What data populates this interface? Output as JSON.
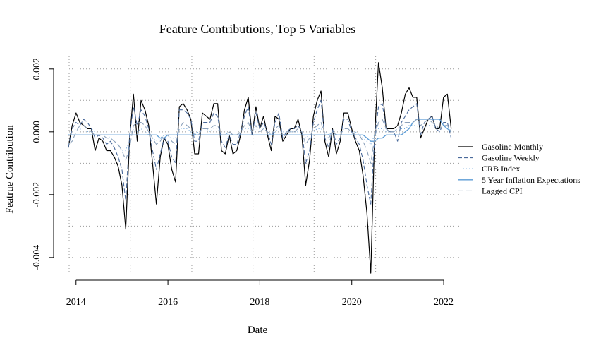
{
  "chart_data": {
    "type": "line",
    "title": "Feature Contributions, Top 5 Variables",
    "xlabel": "Date",
    "ylabel": "Featrue Contribution",
    "xlim": [
      2013.85,
      2022.03
    ],
    "ylim": [
      -0.0047,
      0.0024
    ],
    "x_ticks": [
      2014,
      2016,
      2018,
      2020,
      2022
    ],
    "x_tick_labels": [
      "2014",
      "2016",
      "2018",
      "2020",
      "2022"
    ],
    "y_ticks": [
      -0.004,
      -0.002,
      0.0,
      0.002
    ],
    "y_tick_labels": [
      "-0.004",
      "-0.002",
      "0.000",
      "0.002"
    ],
    "grid_x": [
      2013.85,
      2015.18,
      2016.52,
      2017.85,
      2019.18,
      2020.52
    ],
    "grid_y": [
      -0.004,
      -0.003,
      -0.002,
      -0.001,
      0.0,
      0.001,
      0.002
    ],
    "grid": true,
    "legend_position": "right",
    "x_start": 2013.8333,
    "x_step": 0.0833,
    "series": [
      {
        "name": "Gasoline Monthly",
        "color": "#000000",
        "dash": "",
        "width": 1.2,
        "values": [
          -0.0005,
          0.0002,
          0.0006,
          0.0003,
          0.0002,
          0.0001,
          0.0001,
          -0.0006,
          -0.0002,
          -0.0003,
          -0.0006,
          -0.0006,
          -0.0008,
          -0.0011,
          -0.0017,
          -0.0031,
          -0.0002,
          0.0012,
          -0.0003,
          0.001,
          0.0007,
          0.0002,
          -0.001,
          -0.0023,
          -0.0008,
          -0.0002,
          -0.0004,
          -0.0012,
          -0.0016,
          0.0008,
          0.0009,
          0.0007,
          0.0004,
          -0.0007,
          -0.0007,
          0.0006,
          0.0005,
          0.0004,
          0.0009,
          0.0009,
          -0.0006,
          -0.0007,
          -0.0001,
          -0.0007,
          -0.0006,
          -0.0001,
          0.0007,
          0.0011,
          -0.0001,
          0.0008,
          0.0001,
          0.0005,
          -0.0001,
          -0.0006,
          0.0005,
          0.0004,
          -0.0003,
          -0.0001,
          0.0001,
          0.0001,
          0.0004,
          -0.0001,
          -0.0017,
          -0.0009,
          0.0005,
          0.001,
          0.0013,
          -0.0003,
          -0.0008,
          0.0001,
          -0.0007,
          -0.0003,
          0.0006,
          0.0006,
          0.0001,
          -0.0003,
          -0.0006,
          -0.0014,
          -0.0026,
          -0.0045,
          -0.0002,
          0.0022,
          0.0014,
          0.0001,
          0.0001,
          0.0001,
          0.0002,
          0.0006,
          0.0012,
          0.0014,
          0.0011,
          0.0011,
          -0.0002,
          0.0001,
          0.0004,
          0.0005,
          0.0001,
          0.0001,
          0.0011,
          0.0012,
          0.0001
        ]
      },
      {
        "name": "Gasoline Weekly",
        "color": "#4a6a9b",
        "dash": "6,3",
        "width": 1.1,
        "values": [
          -0.0005,
          0.0001,
          0.0003,
          0.0002,
          0.0004,
          0.0003,
          0.0001,
          -0.0002,
          -0.0001,
          -0.0002,
          -0.0004,
          -0.0003,
          -0.0005,
          -0.0008,
          -0.0012,
          -0.0022,
          -0.0001,
          0.0008,
          0.0002,
          0.0007,
          0.0005,
          0.0001,
          -0.0006,
          -0.0012,
          -0.0007,
          -0.0002,
          -0.0003,
          -0.0008,
          -0.001,
          0.0007,
          0.0007,
          0.0006,
          0.0004,
          -0.0003,
          -0.0003,
          0.0003,
          0.0003,
          0.0003,
          0.0006,
          0.0005,
          -0.0003,
          -0.0005,
          -0.0001,
          -0.0004,
          -0.0004,
          0.0,
          0.0005,
          0.0008,
          -0.0001,
          0.0006,
          0.0001,
          0.0003,
          0.0,
          -0.0004,
          0.0003,
          0.0006,
          -0.0002,
          0.0,
          0.0001,
          0.0001,
          0.0002,
          0.0,
          -0.001,
          -0.0006,
          0.0003,
          0.0007,
          0.001,
          -0.0002,
          -0.0005,
          0.0001,
          -0.0004,
          -0.0002,
          0.0004,
          0.0004,
          0.0,
          -0.0002,
          -0.0004,
          -0.0009,
          -0.0017,
          -0.0023,
          -0.0002,
          0.0008,
          0.0009,
          0.0001,
          0.0,
          0.0,
          -0.0003,
          0.0003,
          0.0005,
          0.0007,
          0.0008,
          0.0009,
          -0.0001,
          0.0003,
          0.0004,
          0.0005,
          0.0001,
          0.0,
          0.0003,
          0.0003,
          -0.0002
        ]
      },
      {
        "name": "CRB Index",
        "color": "#6fa8dc",
        "dash": "1,3",
        "width": 1.2,
        "values": [
          -0.0001,
          0.0,
          0.0001,
          0.0001,
          0.0,
          0.0,
          0.0001,
          0.0,
          -0.0001,
          -0.0001,
          -0.0001,
          -0.0002,
          -0.0003,
          -0.0004,
          -0.0006,
          -0.0006,
          -0.0002,
          0.0001,
          0.0,
          0.0001,
          0.0,
          -0.0001,
          -0.0002,
          -0.0003,
          -0.0002,
          -0.0001,
          -0.0001,
          -0.0002,
          -0.0002,
          0.0001,
          0.0001,
          0.0001,
          0.0,
          -0.0001,
          0.0,
          0.0001,
          0.0001,
          0.0,
          0.0001,
          0.0001,
          -0.0001,
          -0.0001,
          0.0,
          -0.0001,
          -0.0001,
          0.0,
          0.0001,
          0.0001,
          0.0,
          0.0001,
          0.0,
          0.0001,
          0.0,
          -0.0001,
          0.0,
          0.0001,
          0.0,
          0.0,
          0.0,
          0.0,
          0.0,
          0.0,
          -0.0002,
          -0.0001,
          0.0,
          0.0001,
          0.0001,
          0.0,
          -0.0001,
          0.0,
          -0.0001,
          0.0,
          0.0001,
          0.0001,
          0.0,
          0.0,
          -0.0001,
          -0.0002,
          -0.0003,
          -0.0004,
          -0.0001,
          0.0001,
          0.0001,
          0.0,
          0.0,
          0.0,
          0.0001,
          0.0001,
          0.0001,
          0.0002,
          0.0002,
          0.0002,
          0.0001,
          0.0001,
          0.0002,
          0.0002,
          0.0001,
          0.0001,
          0.0002,
          0.0002,
          0.0
        ]
      },
      {
        "name": "5 Year Inflation Expectations",
        "color": "#5b9bd5",
        "dash": "",
        "width": 1.3,
        "values": [
          -0.0001,
          -0.0001,
          -0.0001,
          -0.0001,
          -0.0001,
          -0.0001,
          -0.0001,
          -0.0001,
          -0.0001,
          -0.0001,
          -0.0001,
          -0.0001,
          -0.0001,
          -0.0001,
          -0.0001,
          -0.0001,
          -0.0001,
          -0.0001,
          -0.0001,
          -0.0001,
          -0.0001,
          -0.0001,
          -0.0001,
          -0.0001,
          -0.0002,
          -0.0002,
          -0.0001,
          -0.0001,
          -0.0001,
          -0.0001,
          -0.0001,
          -0.0001,
          -0.0001,
          -0.0001,
          -0.0001,
          -0.0001,
          -0.0001,
          -0.0001,
          -0.0001,
          -0.0001,
          -0.0001,
          -0.0001,
          -0.0001,
          -0.0001,
          -0.0001,
          -0.0001,
          -0.0001,
          -0.0001,
          -0.0001,
          -0.0001,
          -0.0001,
          -0.0001,
          -0.0001,
          -0.0001,
          -0.0001,
          -0.0001,
          -0.0001,
          -0.0001,
          -0.0001,
          -0.0001,
          -0.0001,
          -0.0001,
          -0.0001,
          -0.0001,
          -0.0001,
          -0.0001,
          -0.0001,
          -0.0001,
          -0.0001,
          -0.0001,
          -0.0001,
          -0.0001,
          -0.0001,
          -0.0001,
          -0.0001,
          -0.0001,
          -0.0001,
          -0.0001,
          -0.0002,
          -0.0003,
          -0.0003,
          -0.0002,
          -0.0002,
          -0.0001,
          -0.0001,
          -0.0001,
          -0.0001,
          -0.0001,
          0.0,
          0.0001,
          0.0003,
          0.0004,
          0.0004,
          0.0004,
          0.0004,
          0.0004,
          0.0004,
          0.0004,
          0.0002,
          0.0001,
          0.0
        ]
      },
      {
        "name": "Lagged CPI",
        "color": "#8aa0ba",
        "dash": "8,4",
        "width": 1.1,
        "values": [
          -0.0004,
          -0.0003,
          0.0,
          0.0002,
          0.0002,
          0.0001,
          0.0,
          -0.0001,
          -0.0001,
          -0.0001,
          -0.0002,
          -0.0002,
          -0.0003,
          -0.0004,
          -0.0006,
          -0.0009,
          -0.0005,
          0.0002,
          0.0003,
          0.0003,
          0.0002,
          0.0,
          -0.0002,
          -0.0004,
          -0.0003,
          -0.0001,
          -0.0001,
          -0.0003,
          -0.0004,
          0.0001,
          0.0003,
          0.0002,
          0.0001,
          -0.0001,
          -0.0001,
          0.0001,
          0.0001,
          0.0001,
          0.0002,
          0.0002,
          -0.0001,
          -0.0001,
          0.0,
          -0.0001,
          -0.0001,
          0.0,
          0.0002,
          0.0003,
          0.0,
          0.0002,
          0.0,
          0.0001,
          0.0,
          -0.0001,
          0.0001,
          0.0002,
          -0.0001,
          0.0,
          0.0,
          0.0,
          0.0001,
          0.0,
          -0.0004,
          -0.0002,
          0.0001,
          0.0002,
          0.0003,
          -0.0001,
          -0.0002,
          0.0,
          -0.0001,
          -0.0001,
          0.0001,
          0.0001,
          0.0,
          -0.0001,
          -0.0001,
          -0.0003,
          -0.0006,
          -0.001,
          -0.0002,
          0.0003,
          0.0004,
          0.0001,
          0.0,
          0.0,
          0.0001,
          0.0002,
          0.0003,
          0.0003,
          0.0003,
          0.0004,
          0.0002,
          0.0003,
          0.0004,
          0.0003,
          0.0002,
          0.0001,
          0.0002,
          0.0002,
          0.0
        ]
      }
    ]
  }
}
